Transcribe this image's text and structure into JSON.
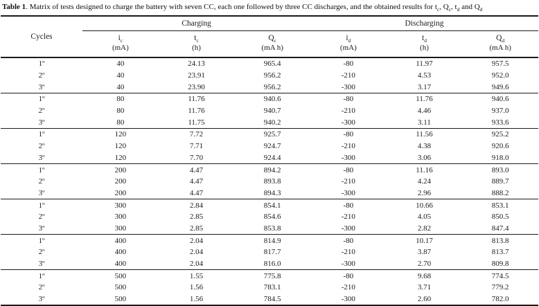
{
  "colors": {
    "text": "#1a1a1a",
    "rule": "#1a1a1a",
    "background": "#ffffff"
  },
  "caption": {
    "label": "Table 1",
    "body": ". Matrix of tests designed to charge the battery with seven CC, each one followed by three CC discharges, and the obtained results for ",
    "sym1_base": "t",
    "sym1_sub": "c",
    "sep1": ", ",
    "sym2_base": "Q",
    "sym2_sub": "c",
    "sep2": ", ",
    "sym3_base": "t",
    "sym3_sub": "d",
    "sep3": " and ",
    "sym4_base": "Q",
    "sym4_sub": "d"
  },
  "header": {
    "cycles": "Cycles",
    "charging": "Charging",
    "discharging": "Discharging",
    "columns": [
      {
        "base": "i",
        "sub": "c",
        "unit": "(mA)"
      },
      {
        "base": "t",
        "sub": "c",
        "unit": "(h)"
      },
      {
        "base": "Q",
        "sub": "c",
        "unit": "(mA h)"
      },
      {
        "base": "i",
        "sub": "d",
        "unit": "(mA)"
      },
      {
        "base": "t",
        "sub": "d",
        "unit": "(h)"
      },
      {
        "base": "Q",
        "sub": "d",
        "unit": "(mA h)"
      }
    ]
  },
  "groups": [
    {
      "rows": [
        [
          "1º",
          "40",
          "24.13",
          "965.4",
          "-80",
          "11.97",
          "957.5"
        ],
        [
          "2º",
          "40",
          "23.91",
          "956.2",
          "-210",
          "4.53",
          "952.0"
        ],
        [
          "3º",
          "40",
          "23.90",
          "956.2",
          "-300",
          "3.17",
          "949.6"
        ]
      ]
    },
    {
      "rows": [
        [
          "1º",
          "80",
          "11.76",
          "940.6",
          "-80",
          "11.76",
          "940.6"
        ],
        [
          "2º",
          "80",
          "11.76",
          "940.7",
          "-210",
          "4.46",
          "937.0"
        ],
        [
          "3º",
          "80",
          "11.75",
          "940.2",
          "-300",
          "3.11",
          "933.6"
        ]
      ]
    },
    {
      "rows": [
        [
          "1º",
          "120",
          "7.72",
          "925.7",
          "-80",
          "11.56",
          "925.2"
        ],
        [
          "2º",
          "120",
          "7.71",
          "924.7",
          "-210",
          "4.38",
          "920.6"
        ],
        [
          "3º",
          "120",
          "7.70",
          "924.4",
          "-300",
          "3.06",
          "918.0"
        ]
      ]
    },
    {
      "rows": [
        [
          "1º",
          "200",
          "4.47",
          "894.2",
          "-80",
          "11.16",
          "893.0"
        ],
        [
          "2º",
          "200",
          "4.47",
          "893.8",
          "-210",
          "4.24",
          "889.7"
        ],
        [
          "3º",
          "200",
          "4.47",
          "894.3",
          "-300",
          "2.96",
          "888.2"
        ]
      ]
    },
    {
      "rows": [
        [
          "1º",
          "300",
          "2.84",
          "854.1",
          "-80",
          "10.66",
          "853.1"
        ],
        [
          "2º",
          "300",
          "2.85",
          "854.6",
          "-210",
          "4.05",
          "850.5"
        ],
        [
          "3º",
          "300",
          "2.85",
          "853.8",
          "-300",
          "2.82",
          "847.4"
        ]
      ]
    },
    {
      "rows": [
        [
          "1º",
          "400",
          "2.04",
          "814.9",
          "-80",
          "10.17",
          "813.8"
        ],
        [
          "2º",
          "400",
          "2.04",
          "817.7",
          "-210",
          "3.87",
          "813.7"
        ],
        [
          "3º",
          "400",
          "2.04",
          "816.0",
          "-300",
          "2.70",
          "809.8"
        ]
      ]
    },
    {
      "rows": [
        [
          "1º",
          "500",
          "1.55",
          "775.8",
          "-80",
          "9.68",
          "774.5"
        ],
        [
          "2º",
          "500",
          "1.56",
          "783.1",
          "-210",
          "3.71",
          "779.2"
        ],
        [
          "3º",
          "500",
          "1.56",
          "784.5",
          "-300",
          "2.60",
          "782.0"
        ]
      ]
    }
  ]
}
